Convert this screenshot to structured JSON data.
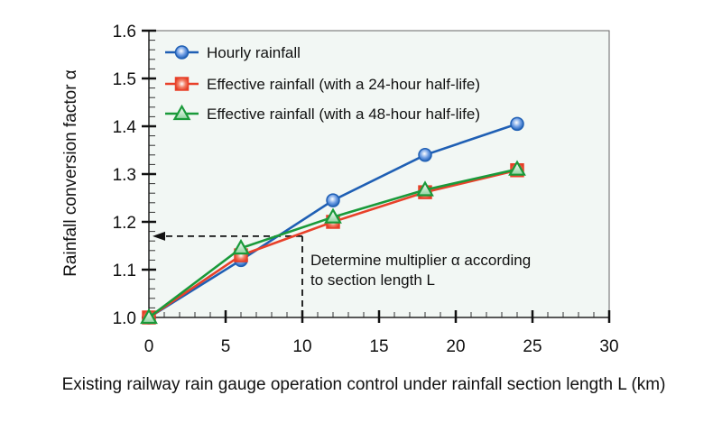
{
  "chart_data": {
    "type": "line",
    "title": "",
    "xlabel": "Existing railway rain gauge operation control under rainfall section length L (km)",
    "ylabel": "Rainfall conversion factor α",
    "xlim": [
      0,
      30
    ],
    "ylim": [
      1.0,
      1.6
    ],
    "x_ticks": [
      0,
      5,
      10,
      15,
      20,
      25,
      30
    ],
    "x_tick_labels": [
      "0",
      "5",
      "10",
      "15",
      "20",
      "25",
      "30"
    ],
    "y_ticks": [
      1.0,
      1.1,
      1.2,
      1.3,
      1.4,
      1.5,
      1.6
    ],
    "y_tick_labels": [
      "1.0",
      "1.1",
      "1.2",
      "1.3",
      "1.4",
      "1.5",
      "1.6"
    ],
    "x_minor_step": 1,
    "y_minor_step": 0.02,
    "grid": false,
    "legend_position": "top-left",
    "plot_background": "#f2f7f4",
    "x": [
      0,
      6,
      12,
      18,
      24
    ],
    "series": [
      {
        "name": "Hourly rainfall",
        "marker": "circle",
        "color": "#1f5fb4",
        "marker_fill": "#5b8fdc",
        "values": [
          1.0,
          1.12,
          1.245,
          1.34,
          1.405
        ]
      },
      {
        "name": "Effective rainfall (with a 24-hour half-life)",
        "marker": "square",
        "color": "#e8412a",
        "marker_fill": "#f06a50",
        "values": [
          1.0,
          1.13,
          1.2,
          1.262,
          1.308
        ]
      },
      {
        "name": "Effective rainfall (with a 48-hour half-life)",
        "marker": "triangle",
        "color": "#1a9a3a",
        "marker_fill": "#7ccf8e",
        "values": [
          1.0,
          1.145,
          1.21,
          1.267,
          1.31
        ]
      }
    ],
    "annotations": [
      {
        "type": "dashed-guide",
        "description": "vertical dashed line from x-axis up to curve, then horizontal dashed arrow to y-axis",
        "x": 10,
        "y": 1.17
      },
      {
        "type": "text",
        "lines": [
          "Determine multiplier α according",
          "to section length L"
        ],
        "x": 10.4,
        "y": 1.125
      }
    ]
  }
}
